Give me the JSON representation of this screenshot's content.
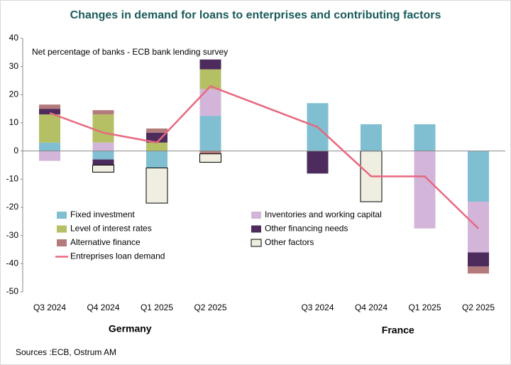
{
  "chart_data": {
    "type": "bar",
    "title": "Changes in demand for loans to enterprises and contributing factors",
    "annotation": "Net percentage of banks - ECB bank lending survey",
    "source": "Sources :ECB, Ostrum AM",
    "groups": [
      {
        "name": "Germany",
        "categories": [
          "Q3 2024",
          "Q4 2024",
          "Q1 2025",
          "Q2 2025"
        ]
      },
      {
        "name": "France",
        "categories": [
          "Q3 2024",
          "Q4 2024",
          "Q1 2025",
          "Q2 2025"
        ]
      }
    ],
    "series": [
      {
        "name": "Fixed investment",
        "color": "#80bfd1",
        "values": [
          3,
          -3,
          -6,
          12.5,
          17,
          9.5,
          9.5,
          -18
        ]
      },
      {
        "name": "Inventories and working capital",
        "color": "#d3b5d9",
        "values": [
          -3.5,
          3,
          0,
          9.5,
          0,
          0,
          -27.5,
          -18
        ]
      },
      {
        "name": "Level of interest rates",
        "color": "#b5bf63",
        "values": [
          10,
          10,
          3,
          7,
          0,
          0,
          0,
          0
        ]
      },
      {
        "name": "Other financing needs",
        "color": "#4d2b5c",
        "values": [
          2,
          -2,
          3.5,
          3.5,
          -8,
          0,
          0,
          -5
        ]
      },
      {
        "name": "Alternative finance",
        "color": "#b37b7b",
        "values": [
          1.5,
          1.5,
          1.5,
          -1,
          0,
          0,
          0,
          -2.5
        ]
      },
      {
        "name": "Other factors",
        "color": "#efeee1",
        "values": [
          0,
          -2.5,
          -12.5,
          -3,
          0,
          -18,
          0,
          0
        ]
      }
    ],
    "line": {
      "name": "Entreprises loan demand",
      "color": "#e8687f",
      "values": [
        13.5,
        6.5,
        3,
        23,
        8.5,
        -9,
        -9,
        -27.5
      ]
    },
    "ylim": [
      -50,
      40
    ],
    "yticks": [
      -50,
      -40,
      -30,
      -20,
      -10,
      0,
      10,
      20,
      30,
      40
    ]
  }
}
